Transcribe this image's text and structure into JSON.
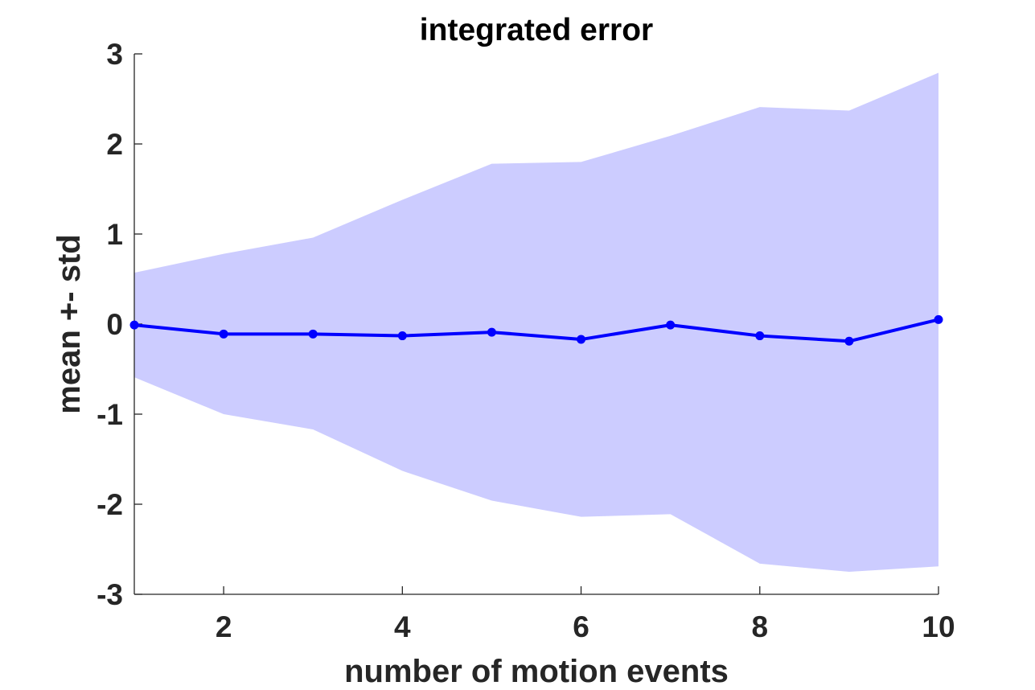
{
  "chart_data": {
    "type": "line",
    "title": "integrated error",
    "xlabel": "number of motion events",
    "ylabel": "mean +- std",
    "xlim": [
      1,
      10
    ],
    "ylim": [
      -3,
      3
    ],
    "xticks": [
      2,
      4,
      6,
      8,
      10
    ],
    "xtick_labels": [
      "2",
      "4",
      "6",
      "8",
      "10"
    ],
    "yticks": [
      -3,
      -2,
      -1,
      0,
      1,
      2,
      3
    ],
    "ytick_labels": [
      "-3",
      "-2",
      "-1",
      "0",
      "1",
      "2",
      "3"
    ],
    "grid": false,
    "x": [
      1,
      2,
      3,
      4,
      5,
      6,
      7,
      8,
      9,
      10
    ],
    "series": [
      {
        "values": [
          -0.01,
          -0.11,
          -0.11,
          -0.13,
          -0.09,
          -0.17,
          -0.01,
          -0.13,
          -0.19,
          0.05
        ],
        "color": "#0000ff"
      }
    ],
    "band": {
      "upper": [
        0.57,
        0.78,
        0.96,
        1.38,
        1.78,
        1.8,
        2.09,
        2.41,
        2.37,
        2.79
      ],
      "lower": [
        -0.59,
        -1.0,
        -1.17,
        -1.63,
        -1.96,
        -2.14,
        -2.11,
        -2.66,
        -2.75,
        -2.69
      ],
      "color": "#ccccff"
    }
  }
}
